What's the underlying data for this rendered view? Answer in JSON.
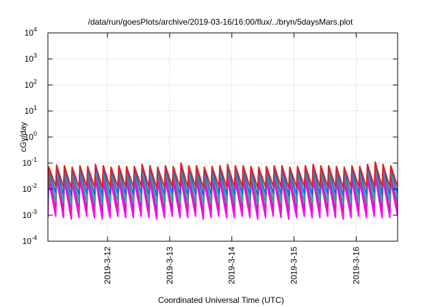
{
  "chart_data": {
    "type": "line",
    "title": "/data/run/goesPlots/archive/2019-03-16/16:00/flux/../bryn/5daysMars.plot",
    "xlabel": "Coordinated Universal Time (UTC)",
    "ylabel": "cGy/day",
    "yscale": "log",
    "ylim": [
      0.0001,
      10000
    ],
    "xlim": [
      "2019-03-11T01:00",
      "2019-03-16T16:00"
    ],
    "grid": true,
    "y_ticks": [
      {
        "value": 0.0001,
        "base": "10",
        "exp": "-4"
      },
      {
        "value": 0.001,
        "base": "10",
        "exp": "-3"
      },
      {
        "value": 0.01,
        "base": "10",
        "exp": "-2"
      },
      {
        "value": 0.1,
        "base": "10",
        "exp": "-1"
      },
      {
        "value": 1,
        "base": "10",
        "exp": "0"
      },
      {
        "value": 10,
        "base": "10",
        "exp": "1"
      },
      {
        "value": 100,
        "base": "10",
        "exp": "2"
      },
      {
        "value": 1000,
        "base": "10",
        "exp": "3"
      },
      {
        "value": 10000,
        "base": "10",
        "exp": "4"
      }
    ],
    "x_ticks": [
      {
        "value": "2019-03-12T00:00",
        "label": "2019-3-12"
      },
      {
        "value": "2019-03-13T00:00",
        "label": "2019-3-13"
      },
      {
        "value": "2019-03-14T00:00",
        "label": "2019-3-14"
      },
      {
        "value": "2019-03-15T00:00",
        "label": "2019-3-15"
      },
      {
        "value": "2019-03-16T00:00",
        "label": "2019-3-16"
      }
    ],
    "cycle_hours": 3,
    "series": [
      {
        "color": "#ff00ff",
        "peaks": [
          0.02,
          0.025,
          0.022,
          0.018,
          0.022,
          0.02,
          0.025,
          0.02,
          0.018,
          0.022,
          0.02,
          0.02,
          0.025,
          0.02,
          0.018,
          0.022,
          0.02,
          0.025,
          0.02,
          0.022,
          0.018,
          0.02,
          0.022,
          0.025,
          0.02,
          0.022,
          0.02,
          0.018,
          0.02,
          0.022,
          0.02,
          0.018,
          0.02,
          0.022,
          0.025,
          0.02,
          0.022,
          0.02,
          0.018,
          0.022,
          0.02,
          0.025,
          0.03,
          0.025,
          0.02,
          0.022
        ],
        "troughs": [
          0.0008,
          0.0009,
          0.0008,
          0.0007,
          0.0008,
          0.0009,
          0.0008,
          0.0007,
          0.0008,
          0.0009,
          0.0008,
          0.0008,
          0.0009,
          0.0008,
          0.0007,
          0.0008,
          0.0009,
          0.0008,
          0.0008,
          0.0009,
          0.0007,
          0.0008,
          0.0009,
          0.0008,
          0.0008,
          0.0009,
          0.0008,
          0.0007,
          0.0008,
          0.0009,
          0.0008,
          0.0007,
          0.0008,
          0.0009,
          0.0008,
          0.0008,
          0.0009,
          0.0008,
          0.0007,
          0.0008,
          0.0009,
          0.0008,
          0.0009,
          0.0008,
          0.0008,
          0.0009
        ]
      },
      {
        "color": "#cc22aa",
        "peaks": [
          0.035,
          0.04,
          0.036,
          0.032,
          0.036,
          0.034,
          0.04,
          0.035,
          0.032,
          0.036,
          0.034,
          0.035,
          0.04,
          0.035,
          0.032,
          0.036,
          0.034,
          0.04,
          0.035,
          0.036,
          0.032,
          0.034,
          0.036,
          0.04,
          0.035,
          0.036,
          0.034,
          0.032,
          0.034,
          0.036,
          0.035,
          0.032,
          0.034,
          0.036,
          0.04,
          0.035,
          0.036,
          0.034,
          0.032,
          0.036,
          0.034,
          0.04,
          0.05,
          0.04,
          0.035,
          0.036
        ],
        "troughs": [
          0.0015,
          0.0017,
          0.0015,
          0.0013,
          0.0015,
          0.0016,
          0.0015,
          0.0013,
          0.0015,
          0.0016,
          0.0015,
          0.0015,
          0.0017,
          0.0015,
          0.0013,
          0.0015,
          0.0016,
          0.0015,
          0.0015,
          0.0016,
          0.0013,
          0.0015,
          0.0016,
          0.0015,
          0.0015,
          0.0016,
          0.0015,
          0.0013,
          0.0015,
          0.0016,
          0.0015,
          0.0013,
          0.0015,
          0.0016,
          0.0015,
          0.0015,
          0.0016,
          0.0015,
          0.0013,
          0.0015,
          0.0016,
          0.0015,
          0.0017,
          0.0015,
          0.0015,
          0.0016
        ]
      },
      {
        "color": "#22aa99",
        "peaks": [
          0.05,
          0.06,
          0.055,
          0.048,
          0.055,
          0.05,
          0.06,
          0.052,
          0.048,
          0.055,
          0.05,
          0.052,
          0.06,
          0.052,
          0.048,
          0.055,
          0.05,
          0.06,
          0.052,
          0.055,
          0.048,
          0.05,
          0.055,
          0.06,
          0.052,
          0.055,
          0.05,
          0.048,
          0.05,
          0.055,
          0.052,
          0.048,
          0.05,
          0.055,
          0.06,
          0.052,
          0.055,
          0.05,
          0.048,
          0.055,
          0.05,
          0.06,
          0.07,
          0.06,
          0.052,
          0.055
        ],
        "troughs": [
          0.003,
          0.0035,
          0.003,
          0.0027,
          0.003,
          0.0032,
          0.003,
          0.0027,
          0.003,
          0.0032,
          0.003,
          0.003,
          0.0035,
          0.003,
          0.0027,
          0.003,
          0.0032,
          0.003,
          0.003,
          0.0032,
          0.0027,
          0.003,
          0.0032,
          0.003,
          0.003,
          0.0032,
          0.003,
          0.0027,
          0.003,
          0.0032,
          0.003,
          0.0027,
          0.003,
          0.0032,
          0.003,
          0.003,
          0.0032,
          0.003,
          0.0027,
          0.003,
          0.0032,
          0.003,
          0.0035,
          0.003,
          0.003,
          0.0032
        ]
      },
      {
        "color": "#2266dd",
        "peaks": [
          0.06,
          0.075,
          0.07,
          0.06,
          0.07,
          0.065,
          0.08,
          0.07,
          0.06,
          0.07,
          0.065,
          0.065,
          0.08,
          0.07,
          0.06,
          0.07,
          0.065,
          0.08,
          0.07,
          0.07,
          0.06,
          0.065,
          0.07,
          0.08,
          0.07,
          0.07,
          0.065,
          0.06,
          0.065,
          0.07,
          0.07,
          0.06,
          0.065,
          0.07,
          0.08,
          0.07,
          0.07,
          0.065,
          0.06,
          0.07,
          0.065,
          0.08,
          0.095,
          0.08,
          0.07,
          0.07
        ],
        "troughs": [
          0.006,
          0.007,
          0.006,
          0.0055,
          0.006,
          0.0065,
          0.006,
          0.0055,
          0.006,
          0.0065,
          0.006,
          0.006,
          0.007,
          0.006,
          0.0055,
          0.006,
          0.0065,
          0.006,
          0.006,
          0.0065,
          0.0055,
          0.006,
          0.0065,
          0.006,
          0.006,
          0.0065,
          0.006,
          0.0055,
          0.006,
          0.0065,
          0.006,
          0.0055,
          0.006,
          0.0065,
          0.006,
          0.006,
          0.0065,
          0.006,
          0.0055,
          0.006,
          0.0065,
          0.006,
          0.007,
          0.006,
          0.006,
          0.0065
        ]
      },
      {
        "color": "#dd2222",
        "peaks": [
          0.07,
          0.085,
          0.08,
          0.07,
          0.08,
          0.075,
          0.09,
          0.08,
          0.07,
          0.08,
          0.075,
          0.075,
          0.09,
          0.08,
          0.07,
          0.08,
          0.075,
          0.1,
          0.08,
          0.08,
          0.07,
          0.075,
          0.08,
          0.09,
          0.08,
          0.08,
          0.075,
          0.07,
          0.075,
          0.08,
          0.08,
          0.07,
          0.075,
          0.08,
          0.09,
          0.08,
          0.08,
          0.075,
          0.07,
          0.08,
          0.075,
          0.09,
          0.11,
          0.09,
          0.08,
          0.08
        ],
        "troughs": [
          0.012,
          0.013,
          0.012,
          0.011,
          0.012,
          0.0125,
          0.012,
          0.011,
          0.012,
          0.0125,
          0.012,
          0.012,
          0.013,
          0.012,
          0.011,
          0.012,
          0.0125,
          0.012,
          0.012,
          0.0125,
          0.011,
          0.012,
          0.0125,
          0.012,
          0.012,
          0.0125,
          0.012,
          0.011,
          0.012,
          0.0125,
          0.012,
          0.011,
          0.012,
          0.0125,
          0.012,
          0.012,
          0.0125,
          0.012,
          0.011,
          0.012,
          0.0125,
          0.012,
          0.013,
          0.012,
          0.012,
          0.0125
        ]
      }
    ]
  }
}
